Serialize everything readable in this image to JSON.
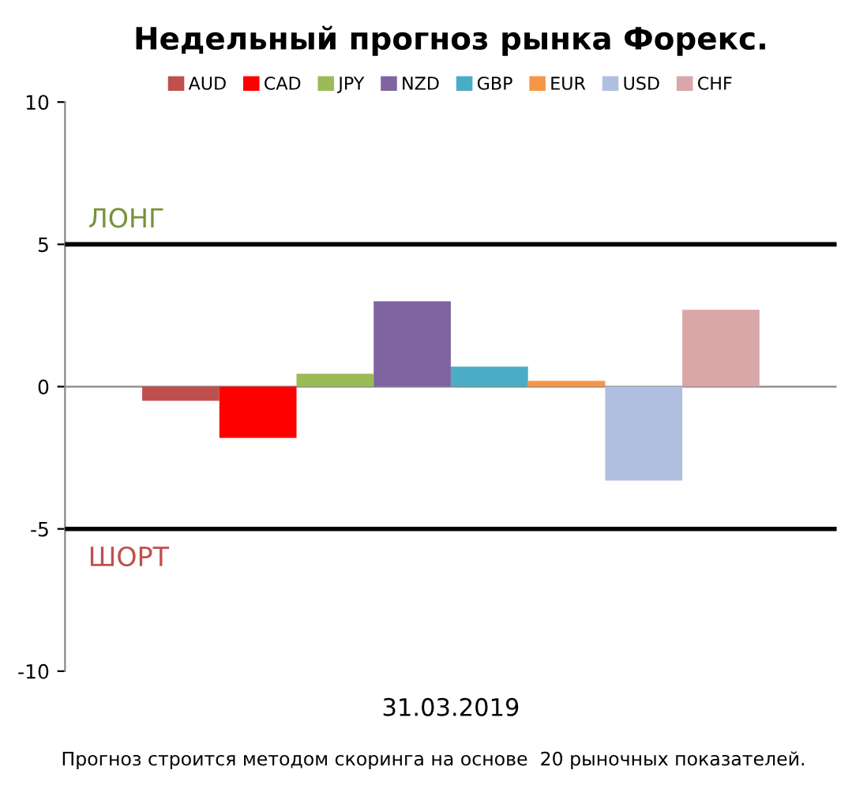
{
  "chart_data": {
    "type": "bar",
    "title": "Недельный прогноз рынка Форекс.",
    "categories": [
      "31.03.2019"
    ],
    "series": [
      {
        "name": "AUD",
        "color": "#c0504d",
        "values": [
          -0.5
        ]
      },
      {
        "name": "CAD",
        "color": "#ff0000",
        "values": [
          -1.8
        ]
      },
      {
        "name": "JPY",
        "color": "#9bbb59",
        "values": [
          0.45
        ]
      },
      {
        "name": "NZD",
        "color": "#8064a2",
        "values": [
          3.0
        ]
      },
      {
        "name": "GBP",
        "color": "#4bacc6",
        "values": [
          0.7
        ]
      },
      {
        "name": "EUR",
        "color": "#f79646",
        "values": [
          0.2
        ]
      },
      {
        "name": "USD",
        "color": "#b0bfe0",
        "values": [
          -3.3
        ]
      },
      {
        "name": "CHF",
        "color": "#d9a7a8",
        "values": [
          2.7
        ]
      }
    ],
    "ylim": [
      -10,
      10
    ],
    "yticks": [
      -10,
      -5,
      0,
      5,
      10
    ],
    "grid": false,
    "legend": "top",
    "ref_lines": [
      {
        "axis": "y",
        "value": 5,
        "label": "ЛОНГ",
        "color": "#000000"
      },
      {
        "axis": "y",
        "value": -5,
        "label": "ШОРТ",
        "color": "#000000"
      }
    ],
    "annotations": [
      "Прогноз строится методом скоринга на основе  20 рыночных показателей."
    ]
  }
}
